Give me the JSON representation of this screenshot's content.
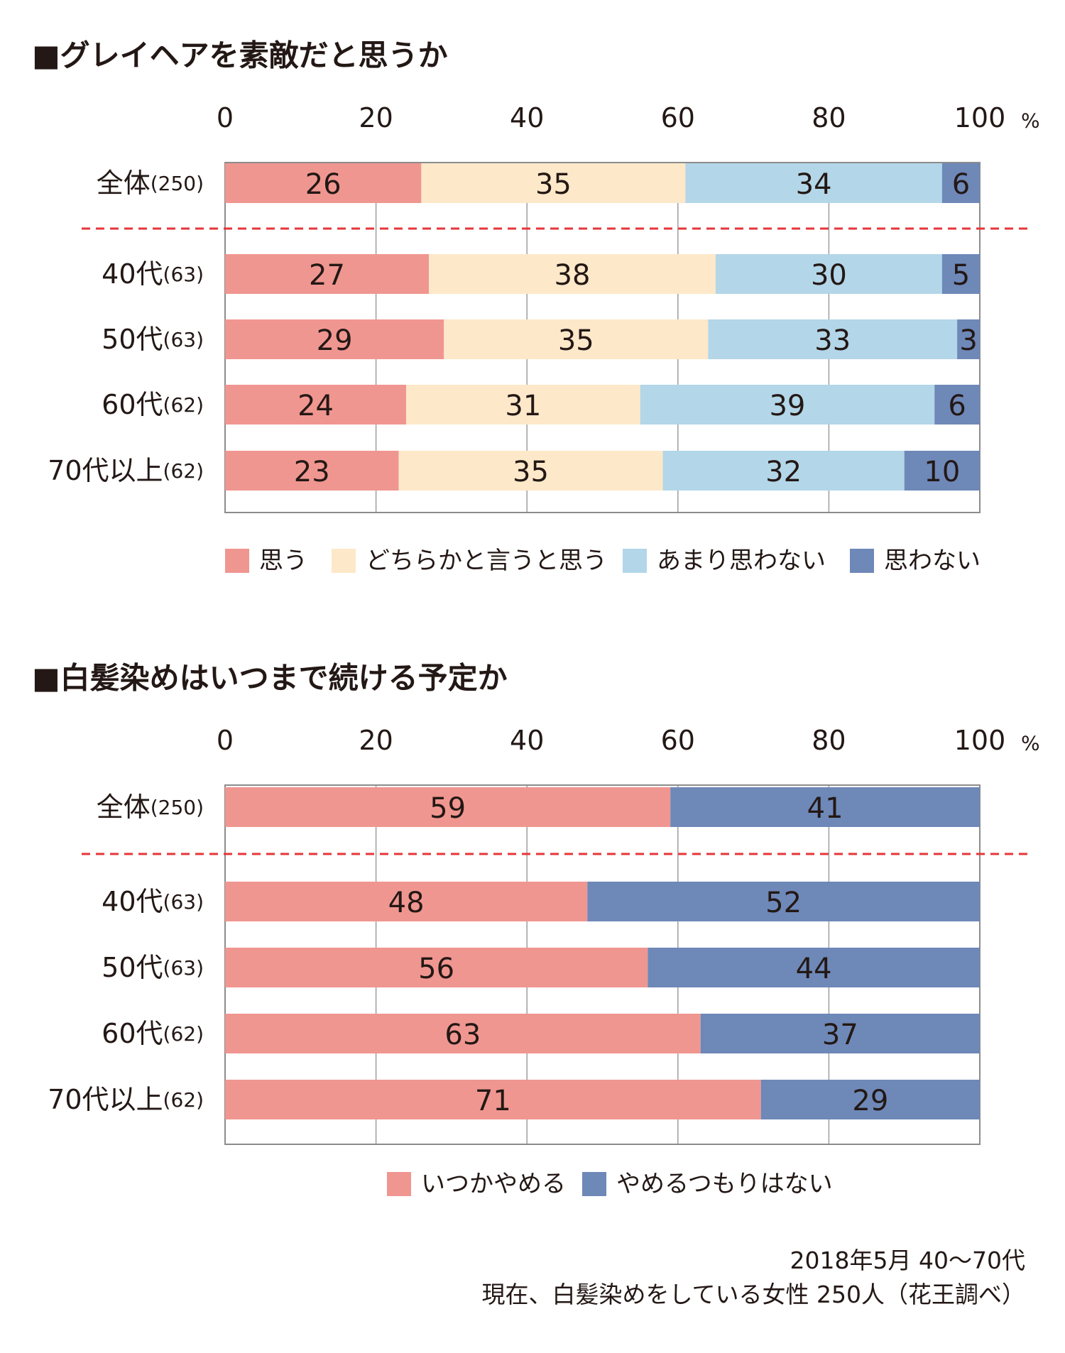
{
  "charts": [
    {
      "title": "■グレイヘアを素敵だと思うか",
      "unit_suffix": "%",
      "legend": [
        {
          "label": "思う",
          "color": "#f09690"
        },
        {
          "label": "どちらかと言うと思う",
          "color": "#fde8c9"
        },
        {
          "label": "あまり思わない",
          "color": "#b3d6e8"
        },
        {
          "label": "思わない",
          "color": "#6e88b8"
        }
      ]
    },
    {
      "title": "■白髪染めはいつまで続ける予定か",
      "unit_suffix": "%",
      "legend": [
        {
          "label": "いつかやめる",
          "color": "#f09690"
        },
        {
          "label": "やめるつもりはない",
          "color": "#6e88b8"
        }
      ]
    }
  ],
  "chart_data": [
    {
      "type": "bar",
      "orientation": "horizontal",
      "stacked": true,
      "title": "■グレイヘアを素敵だと思うか",
      "categories": [
        "全体",
        "40代",
        "50代",
        "60代",
        "70代以上"
      ],
      "category_counts": [
        "(250)",
        "(63)",
        "(63)",
        "(62)",
        "(62)"
      ],
      "series": [
        {
          "name": "思う",
          "values": [
            26,
            27,
            29,
            24,
            23
          ]
        },
        {
          "name": "どちらかと言うと思う",
          "values": [
            35,
            38,
            35,
            31,
            35
          ]
        },
        {
          "name": "あまり思わない",
          "values": [
            34,
            30,
            33,
            39,
            32
          ]
        },
        {
          "name": "思わない",
          "values": [
            6,
            5,
            3,
            6,
            10
          ]
        }
      ],
      "xlim": [
        0,
        100
      ],
      "xticks": [
        "0",
        "20",
        "40",
        "60",
        "80",
        "100"
      ],
      "grid": true,
      "legend_position": "bottom"
    },
    {
      "type": "bar",
      "orientation": "horizontal",
      "stacked": true,
      "title": "■白髪染めはいつまで続ける予定か",
      "categories": [
        "全体",
        "40代",
        "50代",
        "60代",
        "70代以上"
      ],
      "category_counts": [
        "(250)",
        "(63)",
        "(63)",
        "(62)",
        "(62)"
      ],
      "series": [
        {
          "name": "いつかやめる",
          "values": [
            59,
            48,
            56,
            63,
            71
          ]
        },
        {
          "name": "やめるつもりはない",
          "values": [
            41,
            52,
            44,
            37,
            29
          ]
        }
      ],
      "xlim": [
        0,
        100
      ],
      "xticks": [
        "0",
        "20",
        "40",
        "60",
        "80",
        "100"
      ],
      "grid": true,
      "legend_position": "bottom"
    }
  ],
  "footnote": {
    "line1": "2018年5月 40〜70代",
    "line2": "現在、白髪染めをしている女性 250人（花王調べ）"
  }
}
